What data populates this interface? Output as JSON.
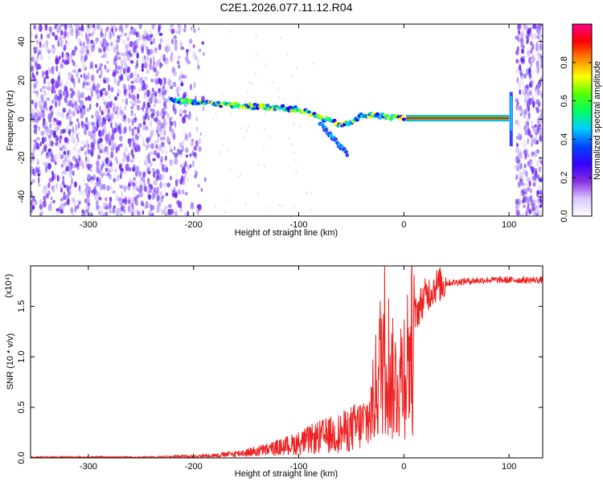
{
  "title": "C2E1.2026.077.11.12.R04",
  "chart_data": [
    {
      "type": "heatmap",
      "xlabel": "Height of straight line (km)",
      "ylabel": "Frequency (Hz)",
      "xlim": [
        -355,
        132
      ],
      "ylim": [
        -50,
        49
      ],
      "xticks": [
        -300,
        -200,
        -100,
        0,
        100
      ],
      "yticks": [
        -40,
        -20,
        0,
        20,
        40
      ],
      "noise_region_left": [
        -355,
        -185
      ],
      "noise_region_right": [
        107,
        132
      ],
      "signal_track": {
        "x": [
          -222,
          -200,
          -180,
          -160,
          -140,
          -120,
          -100,
          -90,
          -80,
          -70,
          -60,
          -50,
          -40,
          -30,
          -20,
          -10,
          0,
          20,
          50,
          80,
          100
        ],
        "y": [
          10,
          8.5,
          8,
          7,
          6.5,
          6,
          5,
          3,
          1,
          -1,
          -3,
          -2,
          2,
          2,
          1.5,
          1,
          0.5,
          0.5,
          0.5,
          0.5,
          0.5
        ]
      },
      "spike_x": 102,
      "colorbar": {
        "label": "Normalized spectral amplitude",
        "range": [
          0,
          1
        ],
        "ticks": [
          "0.0",
          "0.2",
          "0.4",
          "0.6",
          "0.8"
        ],
        "colors": [
          "#ffffff",
          "#d9c8ff",
          "#8a2be2",
          "#3300ff",
          "#0044ff",
          "#00ccff",
          "#00ff66",
          "#55ff00",
          "#ffff00",
          "#ff8800",
          "#ff0000",
          "#ff0088"
        ]
      }
    },
    {
      "type": "line",
      "xlabel": "Height of straight line (km)",
      "ylabel": "SNR (10 * v/v)",
      "ylabel_multiplier": "(x10⁴)",
      "xlim": [
        -355,
        132
      ],
      "ylim": [
        0,
        1.9
      ],
      "xticks": [
        -300,
        -200,
        -100,
        0,
        100
      ],
      "yticks": [
        "0.0",
        "0.5",
        "1.0",
        "1.5"
      ],
      "color": "#ee2222",
      "series": [
        {
          "x": [
            -355,
            -300,
            -250,
            -200,
            -180,
            -160,
            -140,
            -120,
            -100,
            -80,
            -60,
            -50,
            -40,
            -32,
            -28,
            -25,
            -22,
            -18,
            -15,
            -12,
            -8,
            -4,
            0,
            10,
            20,
            30,
            40,
            60,
            80,
            100,
            132
          ],
          "y": [
            0.01,
            0.01,
            0.01,
            0.02,
            0.03,
            0.05,
            0.08,
            0.12,
            0.18,
            0.25,
            0.3,
            0.35,
            0.4,
            0.5,
            0.75,
            0.95,
            1.15,
            1.4,
            1.2,
            0.95,
            0.9,
            0.95,
            1.1,
            1.4,
            1.6,
            1.7,
            1.73,
            1.75,
            1.76,
            1.76,
            1.76
          ]
        }
      ]
    }
  ]
}
